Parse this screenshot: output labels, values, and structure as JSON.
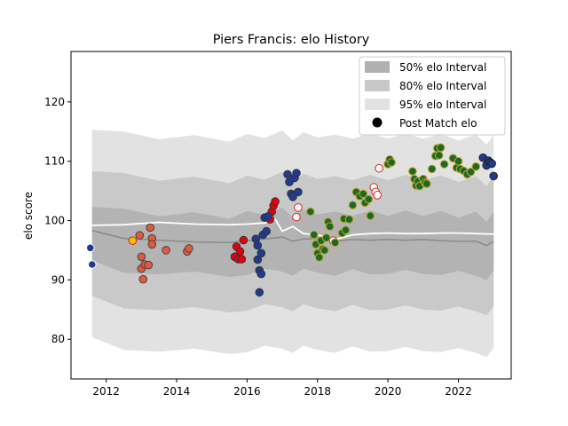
{
  "chart_data": {
    "type": "scatter",
    "title": "Piers Francis: elo History",
    "xlabel": "",
    "ylabel": "elo score",
    "xlim": [
      2011.0,
      2023.5
    ],
    "ylim": [
      73.3,
      128.5
    ],
    "x_ticks": [
      2012,
      2014,
      2016,
      2018,
      2020,
      2022
    ],
    "y_ticks": [
      80,
      90,
      100,
      110,
      120
    ],
    "grid": false,
    "legend_position": "top-right",
    "legend": [
      {
        "label": "50% elo Interval",
        "kind": "band",
        "color": "#b0b0b0"
      },
      {
        "label": "80% elo Interval",
        "kind": "band",
        "color": "#c8c8c8"
      },
      {
        "label": "95% elo Interval",
        "kind": "band",
        "color": "#e2e2e2"
      },
      {
        "label": "Post Match elo",
        "kind": "marker",
        "color": "#000000"
      }
    ],
    "band_colors": {
      "band95": "#e2e2e2",
      "band80": "#c9c9c9",
      "band50": "#b3b3b3"
    },
    "mean_line": {
      "color": "#8a8a8a",
      "x": [
        2011.6,
        2012.5,
        2013.5,
        2014.5,
        2015.5,
        2016.0,
        2016.5,
        2017.0,
        2017.3,
        2017.6,
        2018.0,
        2018.5,
        2019.0,
        2019.5,
        2020.0,
        2020.5,
        2021.0,
        2021.5,
        2022.0,
        2022.5,
        2022.8,
        2023.0
      ],
      "y": [
        98.3,
        97.0,
        96.7,
        96.4,
        96.3,
        96.6,
        96.9,
        97.2,
        96.5,
        96.9,
        97.0,
        96.5,
        96.8,
        96.7,
        96.8,
        96.7,
        96.8,
        96.6,
        96.5,
        96.5,
        95.8,
        96.5
      ]
    },
    "white_line": {
      "color": "#ffffff",
      "x": [
        2011.6,
        2012.5,
        2013.5,
        2014.5,
        2015.5,
        2016.0,
        2016.5,
        2016.8,
        2017.0,
        2017.3,
        2017.6,
        2018.0,
        2018.5,
        2019.0,
        2019.5,
        2020.0,
        2020.5,
        2021.0,
        2021.5,
        2022.0,
        2022.5,
        2023.0
      ],
      "y": [
        99.2,
        99.3,
        99.7,
        99.4,
        99.3,
        99.4,
        99.6,
        100.2,
        98.2,
        99.0,
        97.8,
        97.6,
        96.8,
        97.6,
        97.8,
        97.9,
        97.8,
        97.8,
        97.9,
        97.9,
        97.8,
        97.7
      ]
    },
    "series": [
      {
        "color": "#1f3a93",
        "edge": "#ffffff",
        "x": [
          2011.55,
          2011.6
        ],
        "y": [
          95.4,
          92.6
        ]
      },
      {
        "color": "#f2c200",
        "edge": "#d62728",
        "x": [
          2012.75
        ],
        "y": [
          96.6
        ]
      },
      {
        "color": "#e05a3c",
        "edge": "#444444",
        "x": [
          2012.95,
          2013.0,
          2013.0,
          2013.05,
          2013.1,
          2013.2,
          2013.25,
          2013.3,
          2013.3,
          2013.7,
          2014.3,
          2014.35
        ],
        "y": [
          97.5,
          93.9,
          91.9,
          90.1,
          92.6,
          92.5,
          98.8,
          97.0,
          96.0,
          95.0,
          94.8,
          95.3
        ]
      },
      {
        "color": "#e8000b",
        "edge": "#333333",
        "x": [
          2015.65,
          2015.7,
          2015.75,
          2015.8,
          2015.85,
          2015.9,
          2016.65,
          2016.7,
          2016.75,
          2016.8
        ],
        "y": [
          93.9,
          95.6,
          93.5,
          94.8,
          93.5,
          96.7,
          100.2,
          101.5,
          102.5,
          103.2
        ]
      },
      {
        "color": "#1f3a93",
        "edge": "#333333",
        "x": [
          2016.25,
          2016.3,
          2016.3,
          2016.35,
          2016.35,
          2016.4,
          2016.4,
          2016.45,
          2016.5,
          2016.55,
          2016.6,
          2017.15,
          2017.2,
          2017.25,
          2017.3,
          2017.35,
          2017.4,
          2017.45
        ],
        "y": [
          96.9,
          95.8,
          93.4,
          91.6,
          87.9,
          91.0,
          94.5,
          97.6,
          100.5,
          98.2,
          100.7,
          107.8,
          106.5,
          104.5,
          104.0,
          107.2,
          108.0,
          104.8
        ]
      },
      {
        "color": "#ffffff",
        "edge": "#d62728",
        "x": [
          2017.4,
          2017.45,
          2018.45,
          2019.6,
          2019.65,
          2019.7,
          2019.75
        ],
        "y": [
          100.6,
          102.2,
          96.6,
          105.6,
          104.8,
          104.3,
          108.8
        ]
      },
      {
        "color": "#1a6b2a",
        "edge": "#c9a227",
        "x": [
          2017.8,
          2017.9,
          2017.95,
          2018.0,
          2018.05,
          2018.1,
          2018.15,
          2018.2,
          2018.25,
          2018.3,
          2018.35,
          2018.5,
          2018.7,
          2018.75,
          2018.8,
          2018.9,
          2019.0,
          2019.1,
          2019.2,
          2019.3,
          2019.35,
          2019.45,
          2019.5,
          2020.0,
          2020.05,
          2020.1,
          2020.7,
          2020.75,
          2020.8,
          2020.85,
          2020.9,
          2021.0,
          2021.05,
          2021.1,
          2021.25,
          2021.35,
          2021.4,
          2021.45,
          2021.5,
          2021.6,
          2021.85,
          2021.95,
          2022.0,
          2022.05,
          2022.15,
          2022.25,
          2022.35,
          2022.5
        ],
        "y": [
          101.5,
          97.6,
          96.0,
          94.5,
          93.8,
          96.6,
          95.2,
          95.0,
          97.1,
          99.8,
          99.0,
          96.3,
          97.9,
          100.3,
          98.4,
          100.2,
          102.6,
          104.8,
          104.1,
          104.5,
          103.0,
          103.6,
          100.8,
          109.5,
          110.3,
          109.8,
          108.3,
          107.0,
          105.9,
          106.6,
          105.8,
          107.0,
          106.4,
          106.2,
          108.7,
          110.9,
          112.2,
          111.0,
          112.3,
          109.5,
          110.5,
          108.9,
          110.0,
          108.7,
          108.4,
          107.8,
          108.2,
          109.1
        ]
      },
      {
        "color": "#1f3a93",
        "edge": "#222222",
        "x": [
          2022.7,
          2022.8,
          2022.85,
          2022.9,
          2022.95,
          2023.0
        ],
        "y": [
          110.6,
          109.3,
          110.1,
          109.8,
          109.6,
          107.5
        ]
      }
    ]
  }
}
